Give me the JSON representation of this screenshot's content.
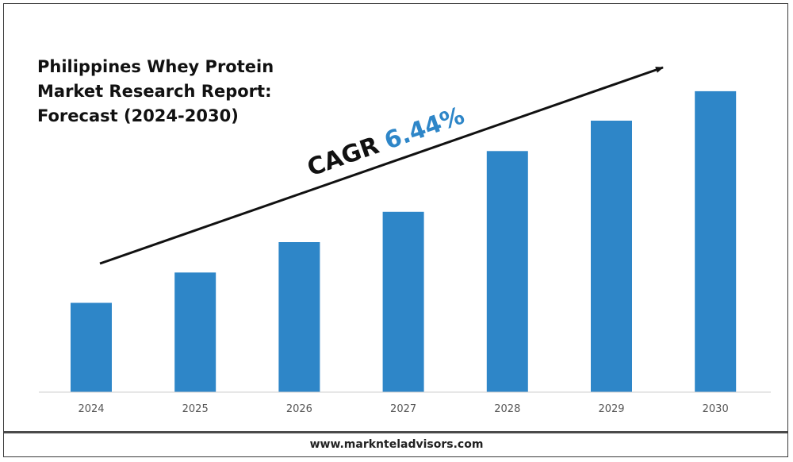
{
  "chart_data": {
    "type": "bar",
    "title_lines": [
      "Philippines Whey Protein",
      "Market Research Report:",
      "Forecast (2024-2030)"
    ],
    "categories": [
      "2024",
      "2025",
      "2026",
      "2027",
      "2028",
      "2029",
      "2030"
    ],
    "values": [
      1.0,
      1.34,
      1.68,
      2.02,
      2.7,
      3.04,
      3.37
    ],
    "ylim": [
      0,
      3.6
    ],
    "grid": false,
    "legend": "none",
    "annotation": {
      "label": "CAGR",
      "value": "6.44%"
    },
    "colors": {
      "bar": "#2E86C8",
      "cagr_value": "#2E86C8",
      "arrow": "#111111",
      "axis": "#cfcfcf"
    }
  },
  "footer": {
    "website": "www.marknteladvisors.com"
  }
}
